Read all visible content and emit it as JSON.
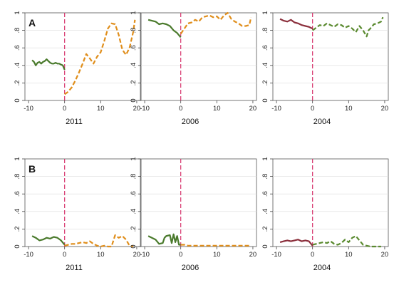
{
  "colors": {
    "pre": "#4a7a2c",
    "pre_alt": "#8b2f3c",
    "post": "#e08e1b",
    "post_alt": "#5a8a2f",
    "event_line": "#d6336c",
    "grid": "#dcdcdc"
  },
  "chart_data": [
    {
      "type": "line",
      "row_label": "A",
      "xlabel": "2011",
      "xlim": [
        -11,
        21
      ],
      "ylim": [
        0,
        1
      ],
      "xticks": [
        "-10",
        "0",
        "10",
        "20"
      ],
      "yticks": [
        "0",
        ".2",
        ".4",
        ".6",
        ".8",
        "1"
      ],
      "event_x": 0,
      "series": [
        {
          "style": "solid",
          "color": "#4a7a2c",
          "x": [
            -9,
            -8.5,
            -8,
            -7.5,
            -7,
            -6.5,
            -6,
            -5.5,
            -5,
            -4.5,
            -4,
            -3.5,
            -3,
            -2.5,
            -2,
            -1.5,
            -1,
            -0.5,
            0
          ],
          "y": [
            0.46,
            0.44,
            0.4,
            0.43,
            0.44,
            0.42,
            0.44,
            0.45,
            0.47,
            0.45,
            0.43,
            0.42,
            0.42,
            0.43,
            0.42,
            0.42,
            0.41,
            0.4,
            0.35
          ]
        },
        {
          "style": "dashed",
          "color": "#e08e1b",
          "x": [
            0,
            1,
            2,
            3,
            4,
            5,
            6,
            7,
            8,
            9,
            10,
            11,
            12,
            13,
            14,
            15,
            16,
            17,
            18,
            19,
            19.5
          ],
          "y": [
            0.07,
            0.1,
            0.15,
            0.23,
            0.32,
            0.42,
            0.53,
            0.48,
            0.42,
            0.5,
            0.55,
            0.68,
            0.82,
            0.88,
            0.87,
            0.75,
            0.58,
            0.52,
            0.6,
            0.78,
            0.92
          ]
        }
      ]
    },
    {
      "type": "line",
      "xlabel": "2006",
      "xlim": [
        -11,
        21
      ],
      "ylim": [
        0,
        1
      ],
      "xticks": [
        "-10",
        "0",
        "10",
        "20"
      ],
      "yticks": [
        "0",
        ".2",
        ".4",
        ".6",
        ".8",
        "1"
      ],
      "event_x": 0,
      "series": [
        {
          "style": "solid",
          "color": "#4a7a2c",
          "x": [
            -9,
            -8,
            -7,
            -6,
            -5,
            -4,
            -3,
            -2,
            -1,
            0
          ],
          "y": [
            0.92,
            0.91,
            0.9,
            0.87,
            0.88,
            0.87,
            0.85,
            0.8,
            0.77,
            0.72
          ]
        },
        {
          "style": "dashed",
          "color": "#e08e1b",
          "x": [
            0,
            1,
            2,
            3,
            4,
            5,
            6,
            7,
            8,
            9,
            10,
            11,
            12,
            13,
            14,
            15,
            16,
            17,
            18,
            19,
            19.5
          ],
          "y": [
            0.76,
            0.82,
            0.88,
            0.89,
            0.92,
            0.9,
            0.95,
            0.96,
            0.97,
            0.95,
            0.96,
            0.92,
            0.97,
            1.0,
            0.93,
            0.9,
            0.88,
            0.85,
            0.85,
            0.86,
            0.95
          ]
        }
      ]
    },
    {
      "type": "line",
      "xlabel": "2004",
      "xlim": [
        -11,
        21
      ],
      "ylim": [
        0,
        1
      ],
      "xticks": [
        "-10",
        "0",
        "10",
        "20"
      ],
      "yticks": [
        "0",
        ".2",
        ".4",
        ".6",
        ".8",
        "1"
      ],
      "event_x": 0,
      "series": [
        {
          "style": "solid",
          "color": "#8b2f3c",
          "x": [
            -9,
            -8,
            -7,
            -6,
            -5,
            -4,
            -3,
            -2,
            -1,
            0
          ],
          "y": [
            0.93,
            0.91,
            0.9,
            0.92,
            0.89,
            0.88,
            0.86,
            0.85,
            0.84,
            0.82
          ]
        },
        {
          "style": "dashed",
          "color": "#5a8a2f",
          "x": [
            0,
            1,
            2,
            3,
            4,
            5,
            6,
            7,
            8,
            9,
            10,
            11,
            12,
            13,
            14,
            15,
            15.5,
            16,
            17,
            18,
            19,
            19.5
          ],
          "y": [
            0.8,
            0.83,
            0.86,
            0.85,
            0.88,
            0.86,
            0.84,
            0.87,
            0.86,
            0.83,
            0.85,
            0.82,
            0.78,
            0.85,
            0.8,
            0.73,
            0.8,
            0.82,
            0.87,
            0.88,
            0.9,
            0.95
          ]
        }
      ]
    },
    {
      "type": "line",
      "row_label": "B",
      "xlabel": "2011",
      "xlim": [
        -11,
        21
      ],
      "ylim": [
        0,
        1
      ],
      "xticks": [
        "-10",
        "0",
        "10",
        "20"
      ],
      "yticks": [
        "0",
        ".2",
        ".4",
        ".6",
        ".8",
        "1"
      ],
      "event_x": 0,
      "series": [
        {
          "style": "solid",
          "color": "#4a7a2c",
          "x": [
            -9,
            -8,
            -7,
            -6,
            -5,
            -4,
            -3,
            -2,
            -1,
            0
          ],
          "y": [
            0.12,
            0.1,
            0.07,
            0.08,
            0.1,
            0.09,
            0.11,
            0.1,
            0.07,
            0.02
          ]
        },
        {
          "style": "dashed",
          "color": "#e08e1b",
          "x": [
            0,
            1,
            2,
            3,
            4,
            5,
            6,
            7,
            8,
            9,
            10,
            11,
            12,
            13,
            14,
            15,
            16,
            17,
            18,
            19
          ],
          "y": [
            0.01,
            0.02,
            0.03,
            0.03,
            0.04,
            0.05,
            0.04,
            0.06,
            0.03,
            0.01,
            0.0,
            0.01,
            0.0,
            0.0,
            0.13,
            0.1,
            0.12,
            0.08,
            0.01,
            0.0
          ]
        }
      ]
    },
    {
      "type": "line",
      "xlabel": "2006",
      "xlim": [
        -11,
        21
      ],
      "ylim": [
        0,
        1
      ],
      "xticks": [
        "-10",
        "0",
        "10",
        "20"
      ],
      "yticks": [
        "0",
        ".2",
        ".4",
        ".6",
        ".8",
        "1"
      ],
      "event_x": 0,
      "series": [
        {
          "style": "solid",
          "color": "#4a7a2c",
          "x": [
            -9,
            -8,
            -7,
            -6,
            -5,
            -4.5,
            -4,
            -3,
            -2.5,
            -2,
            -1.5,
            -1,
            -0.5,
            0
          ],
          "y": [
            0.12,
            0.1,
            0.08,
            0.03,
            0.04,
            0.1,
            0.12,
            0.13,
            0.04,
            0.14,
            0.05,
            0.12,
            0.02,
            0.02
          ]
        },
        {
          "style": "dashed",
          "color": "#e08e1b",
          "x": [
            0,
            1,
            2,
            3,
            4,
            5,
            6,
            8,
            10,
            12,
            14,
            16,
            18,
            19.5
          ],
          "y": [
            0.02,
            0.02,
            0.01,
            0.01,
            0.01,
            0.01,
            0.01,
            0.01,
            0.01,
            0.01,
            0.01,
            0.01,
            0.01,
            0.01
          ]
        }
      ]
    },
    {
      "type": "line",
      "xlabel": "2004",
      "xlim": [
        -11,
        21
      ],
      "ylim": [
        0,
        1
      ],
      "xticks": [
        "-10",
        "0",
        "10",
        "20"
      ],
      "yticks": [
        "0",
        ".2",
        ".4",
        ".6",
        ".8",
        "1"
      ],
      "event_x": 0,
      "series": [
        {
          "style": "solid",
          "color": "#8b2f3c",
          "x": [
            -9,
            -8,
            -7,
            -6,
            -5,
            -4,
            -3,
            -2,
            -1,
            0
          ],
          "y": [
            0.05,
            0.06,
            0.07,
            0.06,
            0.07,
            0.08,
            0.06,
            0.07,
            0.06,
            0.01
          ]
        },
        {
          "style": "dashed",
          "color": "#5a8a2f",
          "x": [
            0,
            1,
            2,
            3,
            4,
            5,
            6,
            7,
            8,
            9,
            10,
            11,
            12,
            13,
            14,
            15,
            16,
            17,
            18,
            19
          ],
          "y": [
            0.02,
            0.03,
            0.04,
            0.05,
            0.04,
            0.06,
            0.03,
            0.02,
            0.04,
            0.08,
            0.05,
            0.1,
            0.12,
            0.07,
            0.02,
            0.01,
            0.0,
            0.0,
            0.0,
            0.0
          ]
        }
      ]
    }
  ]
}
